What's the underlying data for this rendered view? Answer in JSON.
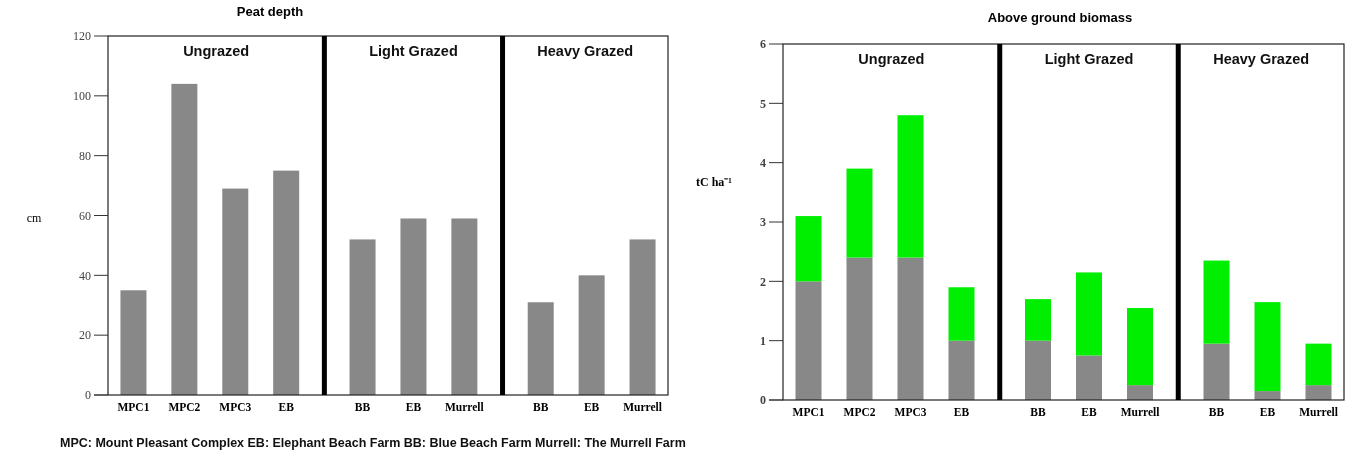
{
  "chart_data": [
    {
      "type": "bar",
      "title": "Peat depth",
      "ylabel": "cm",
      "categories": [
        "MPC1",
        "MPC2",
        "MPC3",
        "EB",
        "BB",
        "EB",
        "Murrell",
        "BB",
        "EB",
        "Murrell"
      ],
      "values": [
        35,
        104,
        69,
        75,
        52,
        59,
        59,
        31,
        40,
        52
      ],
      "color": "#888888",
      "ylim": [
        0,
        120
      ],
      "yticks": [
        0,
        20,
        40,
        60,
        80,
        100,
        120
      ],
      "annotations": [
        "Ungrazed",
        "Light Grazed",
        "Heavy Grazed",
        "MPC: Mount Pleasant Complex EB: Elephant Beach Farm BB: Blue Beach Farm Murrell: The Murrell Farm"
      ]
    },
    {
      "type": "bar",
      "title": "Above ground biomass",
      "ylabel": "tC ha⁻¹",
      "categories": [
        "MPC1",
        "MPC2",
        "MPC3",
        "EB",
        "BB",
        "EB",
        "Murrell",
        "BB",
        "EB",
        "Murrell"
      ],
      "stacked": true,
      "series": [
        {
          "color": "#888888",
          "values": [
            2.0,
            2.4,
            2.4,
            1.0,
            1.0,
            0.75,
            0.25,
            0.95,
            0.15,
            0.25
          ]
        },
        {
          "color": "#00ee00",
          "values": [
            1.1,
            1.5,
            2.4,
            0.9,
            0.7,
            1.4,
            1.3,
            1.4,
            1.5,
            0.7
          ]
        }
      ],
      "ylim": [
        0,
        6
      ],
      "yticks": [
        0,
        1,
        2,
        3,
        4,
        5,
        6
      ],
      "annotations": [
        "Ungrazed",
        "Light Grazed",
        "Heavy Grazed"
      ]
    }
  ]
}
